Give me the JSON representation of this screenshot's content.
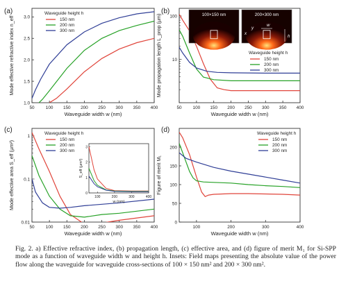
{
  "caption": {
    "text": "Fig. 2. a) Effective refractive index, (b) propagation length, (c) effective area, and (d) figure of merit M₁ for Si-SPP mode as a function of waveguide width w and height h. Insets: Field maps presenting the absolute value of the power flow along the waveguide for waveguide cross-sections of 100 × 150 nm² and 200 × 300 nm²."
  },
  "colors": {
    "150 nm": "#e0443a",
    "200 nm": "#27a227",
    "300 nm": "#2f3e96",
    "axis": "#333333"
  },
  "chart_data": [
    {
      "panel": "(a)",
      "type": "line",
      "xlabel": "Waveguide width w (nm)",
      "ylabel": "Mode effective refractive index n_eff",
      "xlim": [
        50,
        400
      ],
      "ylim": [
        1.0,
        3.2
      ],
      "log_y": false,
      "xticks": [
        50,
        100,
        150,
        200,
        250,
        300,
        350,
        400
      ],
      "yticks": [
        1.0,
        1.5,
        2.0,
        2.5,
        3.0
      ],
      "legend": {
        "title": "Waveguide height h",
        "position": "top-left"
      },
      "series": [
        {
          "name": "150 nm",
          "x": [
            100,
            120,
            150,
            200,
            250,
            300,
            350,
            400
          ],
          "y": [
            1.0,
            1.1,
            1.32,
            1.72,
            2.03,
            2.25,
            2.4,
            2.5
          ]
        },
        {
          "name": "200 nm",
          "x": [
            70,
            80,
            100,
            150,
            200,
            250,
            300,
            350,
            400
          ],
          "y": [
            1.0,
            1.08,
            1.28,
            1.8,
            2.22,
            2.5,
            2.68,
            2.8,
            2.9
          ]
        },
        {
          "name": "300 nm",
          "x": [
            50,
            60,
            75,
            100,
            150,
            200,
            250,
            300,
            350,
            400
          ],
          "y": [
            1.1,
            1.3,
            1.55,
            1.9,
            2.35,
            2.65,
            2.85,
            2.98,
            3.07,
            3.12
          ]
        }
      ]
    },
    {
      "panel": "(b)",
      "type": "line",
      "xlabel": "Waveguide width w (nm)",
      "ylabel": "Mode propagation length L_prop (μm)",
      "xlim": [
        50,
        400
      ],
      "ylim": [
        1,
        150
      ],
      "log_y": true,
      "xticks": [
        50,
        100,
        150,
        200,
        250,
        300,
        350,
        400
      ],
      "ytick_labels": [
        "10",
        "100"
      ],
      "ytick_values": [
        10,
        100
      ],
      "legend": {
        "title": "Waveguide height h",
        "position": "right"
      },
      "insets": [
        "100×150 nm",
        "200×300 nm"
      ],
      "inset_symbols": [
        "w",
        "h",
        "x",
        "y"
      ],
      "series": [
        {
          "name": "150 nm",
          "x": [
            50,
            60,
            80,
            100,
            120,
            140,
            160,
            180,
            200,
            400
          ],
          "y": [
            110,
            80,
            45,
            20,
            8,
            3.5,
            2.2,
            2.0,
            1.9,
            1.9
          ]
        },
        {
          "name": "200 nm",
          "x": [
            50,
            60,
            80,
            100,
            120,
            150,
            200,
            250,
            300,
            400
          ],
          "y": [
            48,
            34,
            14,
            6,
            3.9,
            3.4,
            3.2,
            3.2,
            3.2,
            3.2
          ]
        },
        {
          "name": "300 nm",
          "x": [
            50,
            60,
            80,
            100,
            130,
            160,
            200,
            300,
            400
          ],
          "y": [
            19,
            14,
            8.5,
            6.3,
            5.3,
            5.0,
            4.9,
            4.8,
            4.8
          ]
        }
      ]
    },
    {
      "panel": "(c)",
      "type": "line",
      "xlabel": "Waveguide width w (nm)",
      "ylabel": "Mode effective area S_eff (μm²)",
      "xlim": [
        50,
        400
      ],
      "ylim": [
        0.01,
        1.5
      ],
      "log_y": true,
      "xticks": [
        50,
        100,
        150,
        200,
        250,
        300,
        350,
        400
      ],
      "ytick_labels": [
        "0.01",
        "0.1",
        "1"
      ],
      "ytick_values": [
        0.01,
        0.1,
        1
      ],
      "legend": {
        "title": "Waveguide height h",
        "position": "top-left"
      },
      "inset": {
        "ylabel": "S_eff (μm²)",
        "xlabel": "w (nm)",
        "xticks": [
          100,
          200,
          300,
          400
        ],
        "yticks": [
          0,
          1,
          2,
          3
        ]
      },
      "series": [
        {
          "name": "150 nm",
          "x": [
            50,
            70,
            100,
            130,
            160,
            200,
            250,
            300,
            400
          ],
          "y": [
            1.2,
            0.5,
            0.15,
            0.04,
            0.015,
            0.009,
            0.0095,
            0.011,
            0.014
          ]
        },
        {
          "name": "200 nm",
          "x": [
            50,
            70,
            100,
            130,
            160,
            200,
            250,
            300,
            400
          ],
          "y": [
            0.35,
            0.12,
            0.04,
            0.02,
            0.014,
            0.013,
            0.015,
            0.016,
            0.02
          ]
        },
        {
          "name": "300 nm",
          "x": [
            50,
            60,
            80,
            100,
            130,
            160,
            200,
            300,
            400
          ],
          "y": [
            0.1,
            0.05,
            0.028,
            0.022,
            0.021,
            0.022,
            0.024,
            0.028,
            0.034
          ]
        }
      ],
      "inset_series": [
        {
          "name": "150 nm",
          "x": [
            50,
            80,
            100,
            150,
            200,
            300,
            400
          ],
          "y": [
            3.0,
            1.5,
            0.9,
            0.3,
            0.15,
            0.12,
            0.12
          ]
        },
        {
          "name": "200 nm",
          "x": [
            50,
            80,
            100,
            150,
            200,
            300,
            400
          ],
          "y": [
            1.6,
            0.8,
            0.5,
            0.2,
            0.12,
            0.1,
            0.1
          ]
        },
        {
          "name": "300 nm",
          "x": [
            50,
            80,
            100,
            150,
            200,
            300,
            400
          ],
          "y": [
            1.1,
            0.6,
            0.4,
            0.18,
            0.1,
            0.08,
            0.08
          ]
        }
      ]
    },
    {
      "panel": "(d)",
      "type": "line",
      "xlabel": "Waveguide width w (nm)",
      "ylabel": "Figure of merit M₁",
      "xlim": [
        50,
        400
      ],
      "ylim": [
        0,
        250
      ],
      "log_y": false,
      "xticks": [
        100,
        200,
        300,
        400
      ],
      "yticks": [
        0,
        50,
        100,
        150,
        200
      ],
      "legend": {
        "title": "Waveguide height h",
        "position": "top-right"
      },
      "series": [
        {
          "name": "150 nm",
          "x": [
            50,
            60,
            80,
            100,
            115,
            125,
            135,
            150,
            200,
            250,
            300,
            350,
            400
          ],
          "y": [
            240,
            225,
            180,
            120,
            80,
            68,
            72,
            74,
            76,
            76,
            75,
            74,
            72
          ]
        },
        {
          "name": "200 nm",
          "x": [
            50,
            60,
            70,
            80,
            90,
            100,
            120,
            150,
            200,
            250,
            300,
            350,
            400
          ],
          "y": [
            210,
            185,
            160,
            135,
            118,
            110,
            107,
            106,
            104,
            100,
            97,
            95,
            92
          ]
        },
        {
          "name": "300 nm",
          "x": [
            50,
            70,
            100,
            150,
            200,
            250,
            300,
            350,
            400
          ],
          "y": [
            185,
            170,
            160,
            146,
            136,
            128,
            120,
            112,
            104
          ]
        }
      ]
    }
  ]
}
